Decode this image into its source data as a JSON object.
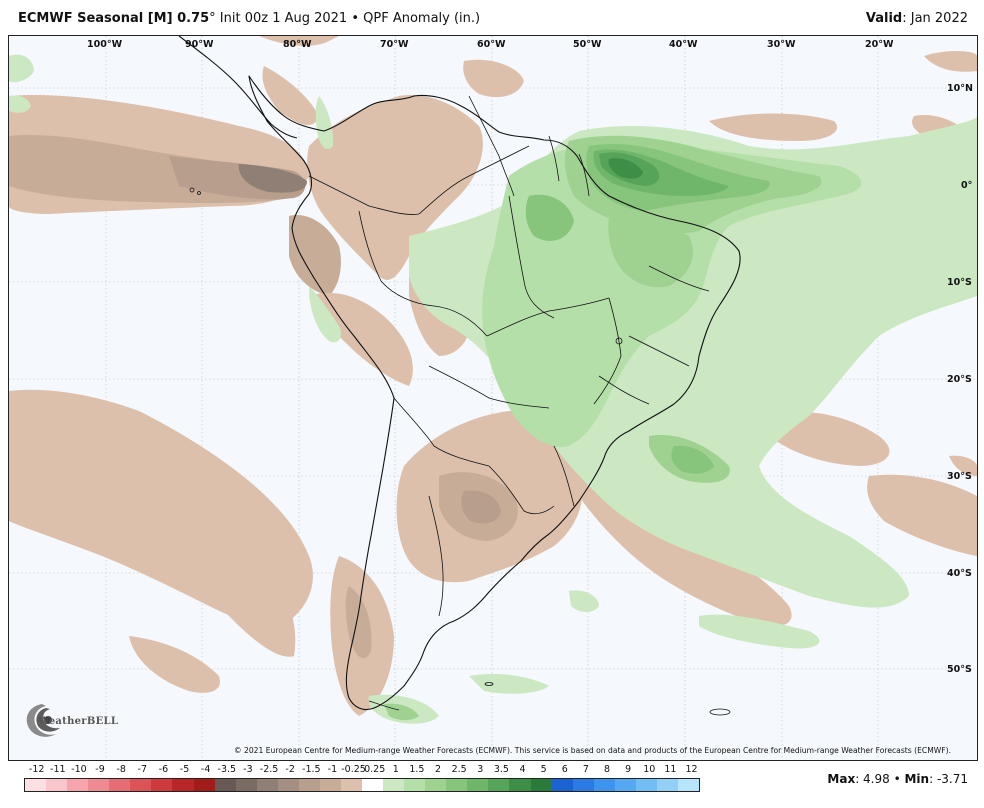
{
  "title": {
    "model": "ECMWF Seasonal [M] 0.75",
    "degree": "°",
    "rest": " Init 00z 1 Aug 2021 • QPF Anomaly (in.)",
    "valid_label": "Valid",
    "valid_value": ": Jan 2022"
  },
  "longitudes": [
    "100°W",
    "90°W",
    "80°W",
    "70°W",
    "60°W",
    "50°W",
    "40°W",
    "30°W",
    "20°W"
  ],
  "latitudes": [
    "10°N",
    "0°",
    "10°S",
    "20°S",
    "30°S",
    "40°S",
    "50°S"
  ],
  "copyright": "© 2021 European Centre for Medium-range Weather Forecasts (ECMWF). This service is based on data and products of the European Centre for Medium-range Weather Forecasts (ECMWF).",
  "logo_text": "WeatherBELL",
  "legend": {
    "labels": [
      "-12",
      "-11",
      "-10",
      "-9",
      "-8",
      "-7",
      "-6",
      "-5",
      "-4",
      "-3.5",
      "-3",
      "-2.5",
      "-2",
      "-1.5",
      "-1",
      "-0.25",
      "0.25",
      "1",
      "1.5",
      "2",
      "2.5",
      "3",
      "3.5",
      "4",
      "5",
      "6",
      "7",
      "8",
      "9",
      "10",
      "11",
      "12"
    ],
    "colors": [
      "#fde0e3",
      "#fbc6cb",
      "#f5a5ab",
      "#ee8b92",
      "#e66d74",
      "#dc5357",
      "#ce3a3e",
      "#b8262a",
      "#a31c1c",
      "#675a54",
      "#7a6b63",
      "#8f7f74",
      "#a48f82",
      "#b79e8d",
      "#c7ac98",
      "#ddc0ab",
      "#ffffff",
      "#cbe8c2",
      "#b5dfa9",
      "#9fd291",
      "#88c57c",
      "#6fb66a",
      "#56a459",
      "#3f8e47",
      "#2a7b3b",
      "#1b63d3",
      "#2a7ce4",
      "#3d93ee",
      "#57a8f2",
      "#72bdf5",
      "#93d0f8",
      "#b7e5fb"
    ]
  },
  "stats": {
    "max_label": "Max",
    "max_value": ": 4.98 • ",
    "min_label": "Min",
    "min_value": ": -3.71"
  }
}
